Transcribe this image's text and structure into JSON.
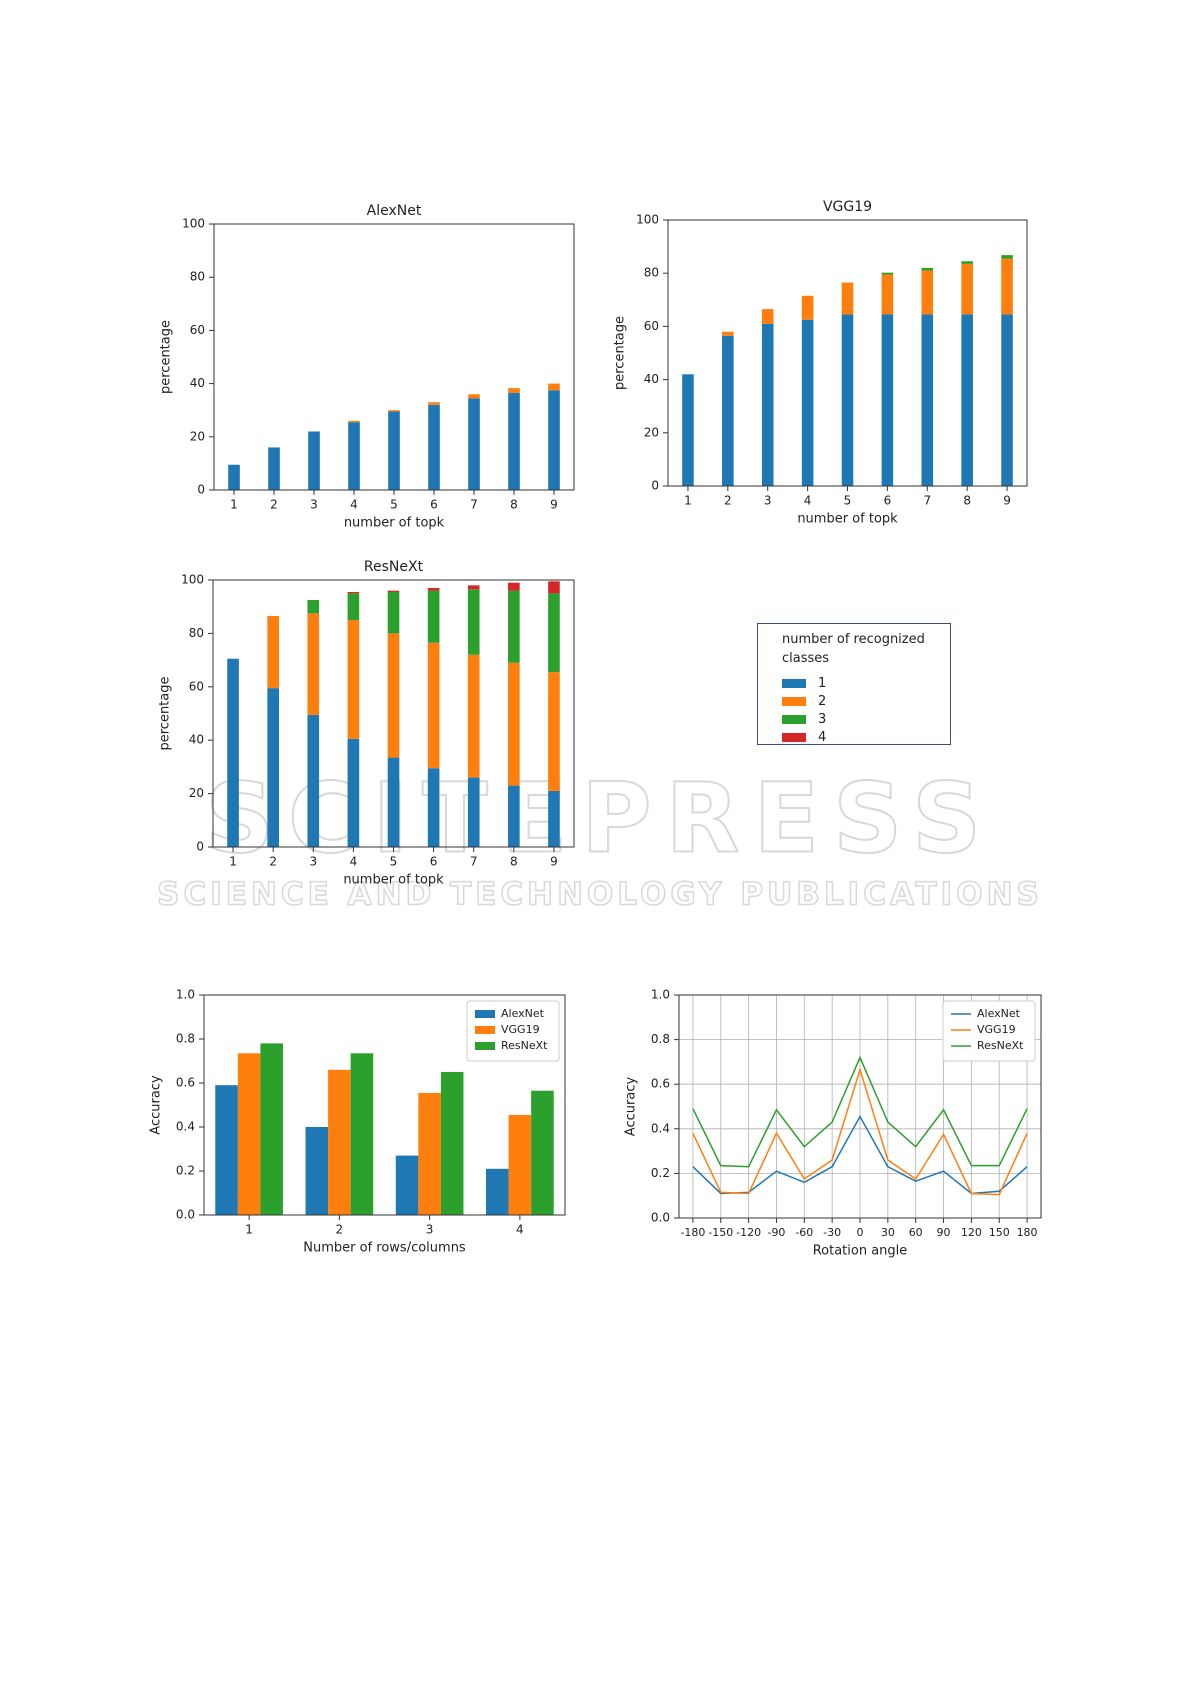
{
  "watermark": {
    "title": "SCITEPRESS",
    "subtitle": "SCIENCE AND TECHNOLOGY PUBLICATIONS"
  },
  "chart_data": [
    {
      "type": "stacked_bar",
      "title": "AlexNet",
      "xlabel": "number of topk",
      "ylabel": "percentage",
      "categories": [
        "1",
        "2",
        "3",
        "4",
        "5",
        "6",
        "7",
        "8",
        "9"
      ],
      "series": [
        {
          "color": "#1f77b4",
          "values": [
            9.5,
            16,
            22,
            25.5,
            29.5,
            32,
            34.5,
            36.5,
            37.5
          ]
        },
        {
          "color": "#ff7f0e",
          "values": [
            0,
            0,
            0,
            0.5,
            0.5,
            1,
            1.5,
            1.8,
            2.5
          ]
        }
      ],
      "ylim": [
        0,
        100
      ],
      "yticks": [
        0,
        20,
        40,
        60,
        80,
        100
      ]
    },
    {
      "type": "stacked_bar",
      "title": "VGG19",
      "xlabel": "number of topk",
      "ylabel": "percentage",
      "categories": [
        "1",
        "2",
        "3",
        "4",
        "5",
        "6",
        "7",
        "8",
        "9"
      ],
      "series": [
        {
          "color": "#1f77b4",
          "values": [
            42,
            56.5,
            61,
            62.5,
            64.5,
            64.5,
            64.5,
            64.5,
            64.5
          ]
        },
        {
          "color": "#ff7f0e",
          "values": [
            0,
            1.5,
            5.5,
            9,
            12,
            15,
            16.5,
            19,
            21
          ]
        },
        {
          "color": "#2ca02c",
          "values": [
            0,
            0,
            0,
            0,
            0,
            0.7,
            1,
            1,
            1.3
          ]
        }
      ],
      "ylim": [
        0,
        100
      ],
      "yticks": [
        0,
        20,
        40,
        60,
        80,
        100
      ]
    },
    {
      "type": "stacked_bar",
      "title": "ResNeXt",
      "xlabel": "number of topk",
      "ylabel": "percentage",
      "legend_title": "number of recognized classes",
      "categories": [
        "1",
        "2",
        "3",
        "4",
        "5",
        "6",
        "7",
        "8",
        "9"
      ],
      "series": [
        {
          "name": "1",
          "color": "#1f77b4",
          "values": [
            70.5,
            59.5,
            49.5,
            40.5,
            33.5,
            29.5,
            26,
            23,
            21
          ]
        },
        {
          "name": "2",
          "color": "#ff7f0e",
          "values": [
            0,
            27,
            38,
            44.5,
            46.5,
            47,
            46,
            46,
            44.5
          ]
        },
        {
          "name": "3",
          "color": "#2ca02c",
          "values": [
            0,
            0,
            5,
            10,
            15.5,
            19.5,
            24.5,
            27,
            29.5
          ]
        },
        {
          "name": "4",
          "color": "#d62728",
          "values": [
            0,
            0,
            0,
            0.5,
            0.5,
            1,
            1.5,
            3,
            4.5
          ]
        }
      ],
      "ylim": [
        0,
        100
      ],
      "yticks": [
        0,
        20,
        40,
        60,
        80,
        100
      ]
    },
    {
      "type": "bar",
      "xlabel": "Number of rows/columns",
      "ylabel": "Accuracy",
      "legend": "upper right",
      "categories": [
        "1",
        "2",
        "3",
        "4"
      ],
      "series": [
        {
          "name": "AlexNet",
          "color": "#1f77b4",
          "values": [
            0.59,
            0.4,
            0.27,
            0.21
          ]
        },
        {
          "name": "VGG19",
          "color": "#ff7f0e",
          "values": [
            0.735,
            0.66,
            0.555,
            0.455
          ]
        },
        {
          "name": "ResNeXt",
          "color": "#2ca02c",
          "values": [
            0.78,
            0.735,
            0.65,
            0.565
          ]
        }
      ],
      "ylim": [
        0,
        1
      ],
      "yticks": [
        {
          "value": 0,
          "label": "0.0"
        },
        0.2,
        0.4,
        0.6,
        0.8,
        {
          "value": 1,
          "label": "1.0"
        }
      ]
    },
    {
      "type": "line",
      "xlabel": "Rotation angle",
      "ylabel": "Accuracy",
      "legend": "upper right",
      "grid": true,
      "x": [
        -180,
        -150,
        -120,
        -90,
        -60,
        -30,
        0,
        30,
        60,
        90,
        120,
        150,
        180
      ],
      "series": [
        {
          "name": "AlexNet",
          "color": "#1f77b4",
          "values": [
            0.23,
            0.11,
            0.115,
            0.21,
            0.16,
            0.23,
            0.455,
            0.23,
            0.165,
            0.21,
            0.11,
            0.12,
            0.23
          ]
        },
        {
          "name": "VGG19",
          "color": "#ff7f0e",
          "values": [
            0.38,
            0.115,
            0.11,
            0.38,
            0.175,
            0.26,
            0.665,
            0.26,
            0.175,
            0.375,
            0.11,
            0.105,
            0.38
          ]
        },
        {
          "name": "ResNeXt",
          "color": "#2ca02c",
          "values": [
            0.49,
            0.235,
            0.23,
            0.485,
            0.32,
            0.43,
            0.72,
            0.43,
            0.32,
            0.485,
            0.235,
            0.235,
            0.49
          ]
        }
      ],
      "xlim": [
        -195,
        195
      ],
      "xticks": [
        -180,
        -150,
        -120,
        -90,
        -60,
        -30,
        0,
        30,
        60,
        90,
        120,
        150,
        180
      ],
      "ylim": [
        0,
        1
      ],
      "yticks": [
        {
          "value": 0,
          "label": "0.0"
        },
        0.2,
        0.4,
        0.6,
        0.8,
        {
          "value": 1,
          "label": "1.0"
        }
      ]
    }
  ]
}
